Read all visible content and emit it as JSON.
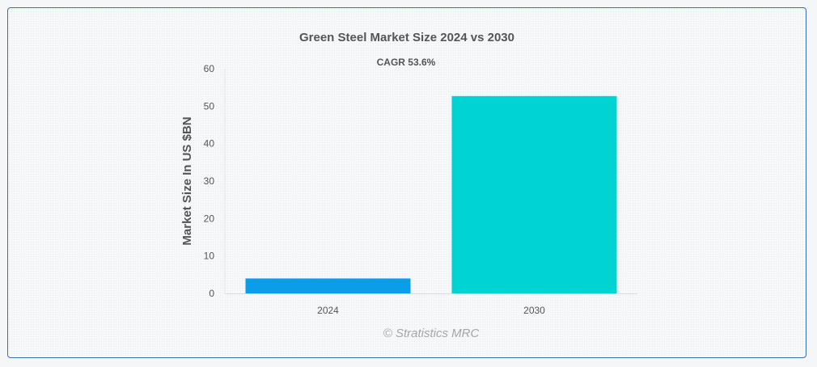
{
  "chart_data": {
    "type": "bar",
    "title": "Green Steel Market Size 2024 vs 2030",
    "subtitle": "CAGR 53.6%",
    "xlabel": "",
    "ylabel": "Market Size In US $BN",
    "categories": [
      "2024",
      "2030"
    ],
    "values": [
      4.0,
      52.7
    ],
    "ylim": [
      0,
      60
    ],
    "yticks": [
      "0",
      "10",
      "20",
      "30",
      "40",
      "50",
      "60"
    ],
    "grid": false,
    "legend": "none",
    "colors": [
      "#0b9ee8",
      "#00d3d3"
    ]
  },
  "watermark": "© Stratistics MRC"
}
